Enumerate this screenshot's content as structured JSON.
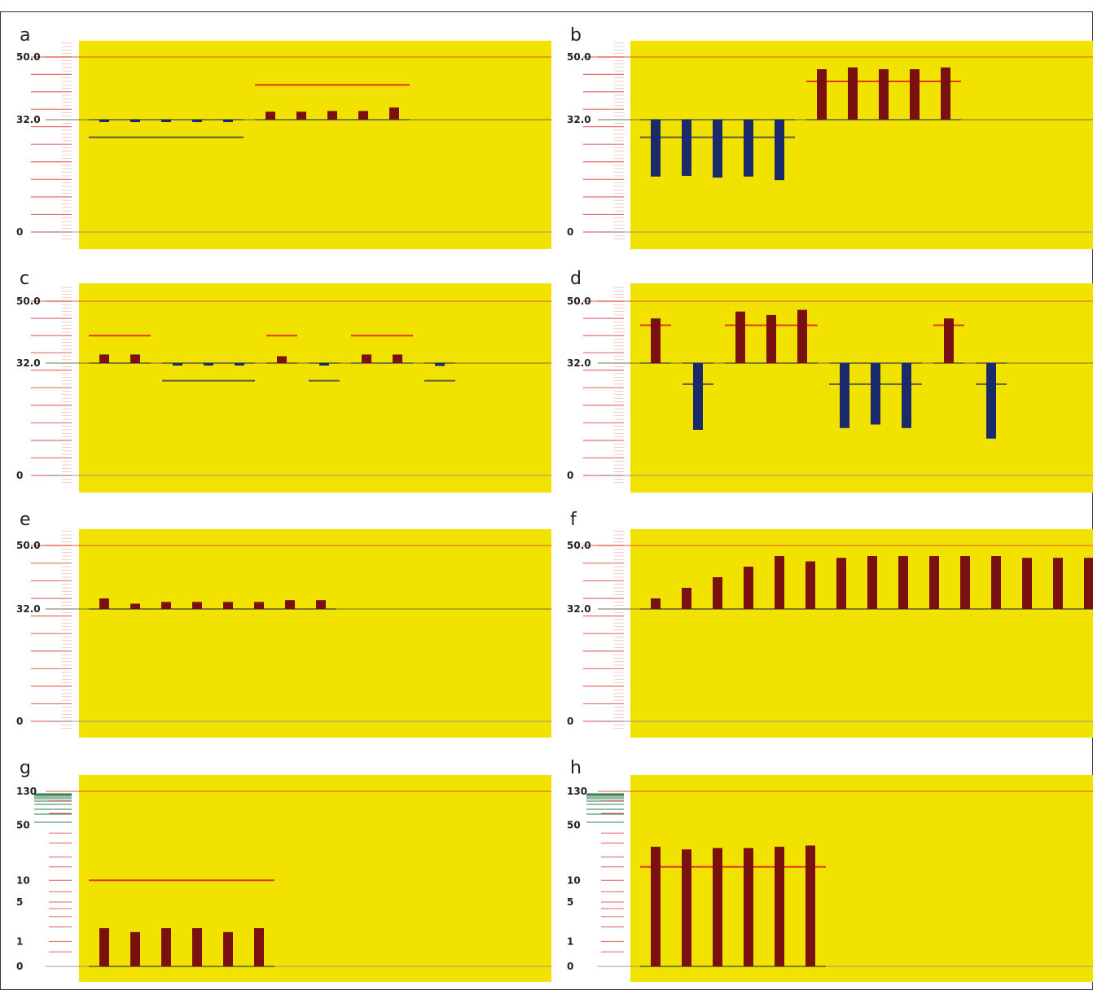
{
  "colors": {
    "background": "#ffffff",
    "plot_bg": "#f2e200",
    "bar_up": "#7a1010",
    "bar_down": "#1b2a6b",
    "ref_red": "#e03a1a",
    "ref_dark": "#5a5a3a",
    "tick_red": "#e06060",
    "tick_green": "#2e7d4f"
  },
  "chart_data": [
    {
      "panel": "a",
      "type": "bar",
      "scale": "linear",
      "ylim": [
        0,
        50
      ],
      "ytick_labels": [
        {
          "value": 50,
          "label": "50.0"
        },
        {
          "value": 32,
          "label": "32.0"
        },
        {
          "value": 0,
          "label": "0"
        }
      ],
      "groups": [
        {
          "baseline": 32,
          "ref": {
            "value": 27,
            "color": "dark"
          },
          "values": [
            31.6,
            31.5,
            31.5,
            31.7,
            31.7
          ]
        },
        {
          "baseline": 32,
          "ref": {
            "value": 42,
            "color": "red"
          },
          "values": [
            34.3,
            34.3,
            34.5,
            34.5,
            35.5
          ]
        }
      ]
    },
    {
      "panel": "b",
      "type": "bar",
      "scale": "linear",
      "ylim": [
        0,
        50
      ],
      "ytick_labels": [
        {
          "value": 50,
          "label": "50.0"
        },
        {
          "value": 32,
          "label": "32.0"
        },
        {
          "value": 0,
          "label": "0"
        }
      ],
      "groups": [
        {
          "baseline": 32,
          "ref": {
            "value": 27,
            "color": "dark"
          },
          "values": [
            15.8,
            16.0,
            15.5,
            15.8,
            14.8
          ]
        },
        {
          "baseline": 32,
          "ref": {
            "value": 43,
            "color": "red"
          },
          "values": [
            46.5,
            47.0,
            46.5,
            46.5,
            47.0
          ]
        }
      ]
    },
    {
      "panel": "c",
      "type": "bar",
      "scale": "linear",
      "ylim": [
        0,
        50
      ],
      "ytick_labels": [
        {
          "value": 50,
          "label": "50.0"
        },
        {
          "value": 32,
          "label": "32.0"
        },
        {
          "value": 0,
          "label": "0"
        }
      ],
      "groups": [
        {
          "baseline": 32,
          "ref": {
            "value": 40,
            "color": "red"
          },
          "values": [
            34.5,
            34.5
          ]
        },
        {
          "baseline": 32,
          "ref": {
            "value": 27,
            "color": "dark"
          },
          "values": [
            31.5,
            31.5,
            31.5
          ]
        },
        {
          "baseline": 32,
          "ref": {
            "value": 40,
            "color": "red"
          },
          "values": [
            34.0
          ]
        },
        {
          "baseline": 32,
          "ref": {
            "value": 27,
            "color": "dark"
          },
          "values": [
            31.3
          ]
        },
        {
          "baseline": 32,
          "ref": {
            "value": 40,
            "color": "red"
          },
          "values": [
            34.5,
            34.5
          ]
        },
        {
          "baseline": 32,
          "ref": {
            "value": 27,
            "color": "dark"
          },
          "values": [
            31.2
          ]
        }
      ]
    },
    {
      "panel": "d",
      "type": "bar",
      "scale": "linear",
      "ylim": [
        0,
        50
      ],
      "ytick_labels": [
        {
          "value": 50,
          "label": "50.0"
        },
        {
          "value": 32,
          "label": "32.0"
        },
        {
          "value": 0,
          "label": "0"
        }
      ],
      "groups": [
        {
          "baseline": 32,
          "ref": {
            "value": 43,
            "color": "red"
          },
          "values": [
            45.0
          ]
        },
        {
          "baseline": 32,
          "ref": {
            "value": 26,
            "color": "dark"
          },
          "values": [
            13.0
          ]
        },
        {
          "baseline": 32,
          "ref": {
            "value": 43,
            "color": "red"
          },
          "values": [
            47.0,
            46.0,
            47.5
          ]
        },
        {
          "baseline": 32,
          "ref": {
            "value": 26,
            "color": "dark"
          },
          "values": [
            13.5,
            14.5,
            13.5
          ]
        },
        {
          "baseline": 32,
          "ref": {
            "value": 43,
            "color": "red"
          },
          "values": [
            45.0
          ]
        },
        {
          "baseline": 32,
          "ref": {
            "value": 26,
            "color": "dark"
          },
          "values": [
            10.5
          ]
        }
      ]
    },
    {
      "panel": "e",
      "type": "bar",
      "scale": "linear",
      "ylim": [
        0,
        50
      ],
      "ytick_labels": [
        {
          "value": 50,
          "label": "50.0"
        },
        {
          "value": 32,
          "label": "32.0"
        },
        {
          "value": 0,
          "label": "0"
        }
      ],
      "groups": [
        {
          "baseline": 32,
          "values": [
            35.0,
            33.5,
            34.0,
            34.0,
            34.0,
            34.0,
            34.5,
            34.5
          ]
        }
      ]
    },
    {
      "panel": "f",
      "type": "bar",
      "scale": "linear",
      "ylim": [
        0,
        50
      ],
      "ytick_labels": [
        {
          "value": 50,
          "label": "50.0"
        },
        {
          "value": 32,
          "label": "32.0"
        },
        {
          "value": 0,
          "label": "0"
        }
      ],
      "groups": [
        {
          "baseline": 32,
          "values": [
            35.0,
            38.0,
            41.0,
            44.0,
            47.0,
            45.5,
            46.5,
            47.0,
            47.0,
            47.0,
            47.0,
            47.0,
            46.5,
            46.5,
            46.5
          ]
        }
      ]
    },
    {
      "panel": "g",
      "type": "bar",
      "scale": "log",
      "ylim": [
        0,
        130
      ],
      "ytick_labels": [
        {
          "value": 130,
          "label": "130"
        },
        {
          "value": 50,
          "label": "50"
        },
        {
          "value": 10,
          "label": "10"
        },
        {
          "value": 5,
          "label": "5"
        },
        {
          "value": 1,
          "label": "1"
        },
        {
          "value": 0,
          "label": "0"
        }
      ],
      "groups": [
        {
          "baseline": 0,
          "ref": {
            "value": 10,
            "color": "red"
          },
          "values": [
            1.9,
            1.6,
            1.9,
            1.9,
            1.6,
            1.9
          ]
        }
      ]
    },
    {
      "panel": "h",
      "type": "bar",
      "scale": "log",
      "ylim": [
        0,
        130
      ],
      "ytick_labels": [
        {
          "value": 130,
          "label": "130"
        },
        {
          "value": 50,
          "label": "50"
        },
        {
          "value": 10,
          "label": "10"
        },
        {
          "value": 5,
          "label": "5"
        },
        {
          "value": 1,
          "label": "1"
        },
        {
          "value": 0,
          "label": "0"
        }
      ],
      "groups": [
        {
          "baseline": 0,
          "ref": {
            "value": 15,
            "color": "red"
          },
          "values": [
            27,
            25,
            26,
            26,
            27,
            28
          ]
        }
      ]
    }
  ]
}
